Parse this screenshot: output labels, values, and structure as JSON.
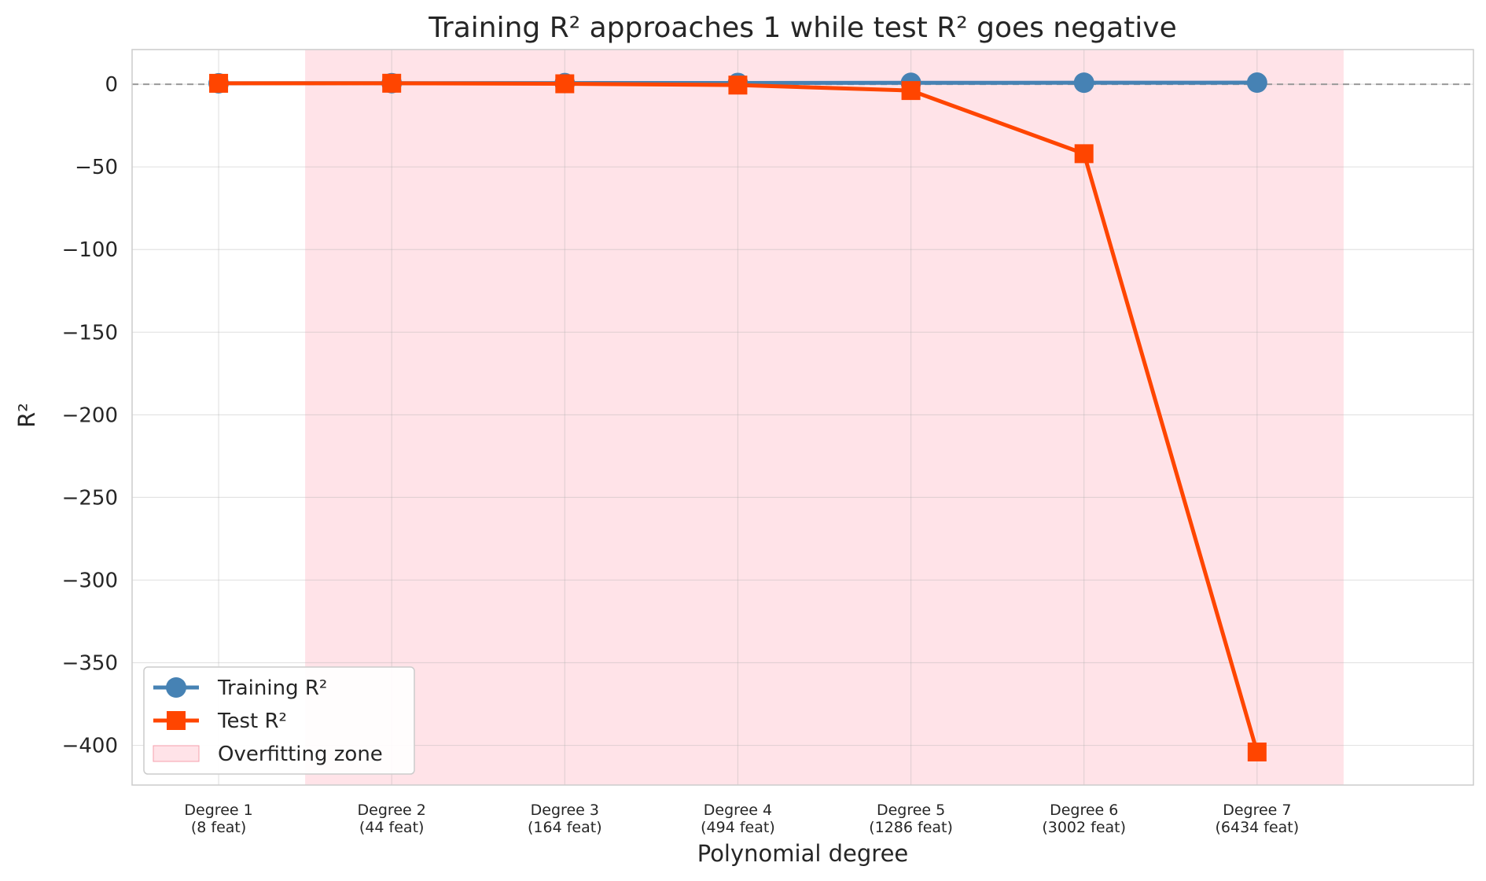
{
  "chart_data": {
    "type": "line",
    "title": "Training R² approaches 1 while test R² goes negative",
    "xlabel": "Polynomial degree",
    "ylabel": "R²",
    "categories": [
      [
        "Degree 1",
        "(8 feat)"
      ],
      [
        "Degree 2",
        "(44 feat)"
      ],
      [
        "Degree 3",
        "(164 feat)"
      ],
      [
        "Degree 4",
        "(494 feat)"
      ],
      [
        "Degree 5",
        "(1286 feat)"
      ],
      [
        "Degree 6",
        "(3002 feat)"
      ],
      [
        "Degree 7",
        "(6434 feat)"
      ]
    ],
    "x": [
      1,
      2,
      3,
      4,
      5,
      6,
      7
    ],
    "xlim": [
      0.5,
      8.25
    ],
    "ylim": [
      -424,
      21
    ],
    "yticks": [
      0,
      -50,
      -100,
      -150,
      -200,
      -250,
      -300,
      -350,
      -400
    ],
    "ytick_labels": [
      "0",
      "−50",
      "−100",
      "−150",
      "−200",
      "−250",
      "−300",
      "−350",
      "−400"
    ],
    "reference_line": {
      "y": 0,
      "style": "dashed",
      "color": "#999999"
    },
    "shaded_region": {
      "x_start": 1.5,
      "x_end": 7.5,
      "color": "#ffc0cb",
      "label": "Overfitting zone"
    },
    "series": [
      {
        "name": "Training R²",
        "values": [
          0.6,
          0.68,
          0.73,
          0.8,
          0.88,
          0.95,
          0.99
        ],
        "color": "#4682b4",
        "marker": "circle"
      },
      {
        "name": "Test R²",
        "values": [
          0.58,
          0.62,
          0.3,
          -0.5,
          -3.8,
          -42,
          -404
        ],
        "color": "#ff4500",
        "marker": "square"
      }
    ],
    "grid": true,
    "legend_position": "lower-left"
  }
}
